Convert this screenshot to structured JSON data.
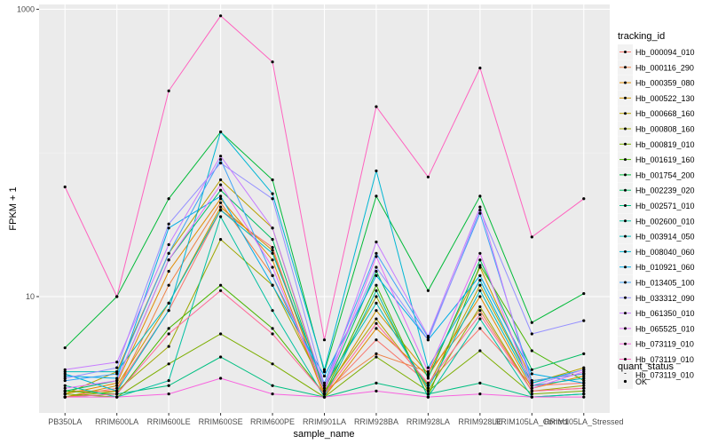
{
  "chart_data": {
    "type": "line",
    "xlabel": "sample_name",
    "ylabel": "FPKM + 1",
    "y_scale": "log10",
    "ylim": [
      1.55,
      1080
    ],
    "y_ticks": [
      {
        "value": 10,
        "label": "10"
      },
      {
        "value": 1000,
        "label": "1000"
      }
    ],
    "grid": true,
    "legend_position": "right",
    "categories": [
      "PB350LA",
      "RRIM600LA",
      "RRIM600LE",
      "RRIM600SE",
      "RRIM600PE",
      "RRIM901LA",
      "RRIM928BA",
      "RRIM928LA",
      "RRIM928LE",
      "RRIM105LA_Control",
      "RRIM105LA_Stressed"
    ],
    "legend": {
      "title": "tracking_id",
      "status_title": "quant_status",
      "status_items": [
        {
          "label": "OK",
          "marker": "point"
        }
      ]
    },
    "series": [
      {
        "name": "Hb_000094_010",
        "color": "#F8766D",
        "values": [
          2.0,
          2.3,
          8.0,
          40.0,
          22.0,
          2.1,
          5.0,
          2.5,
          6.0,
          2.4,
          2.5
        ]
      },
      {
        "name": "Hb_000116_290",
        "color": "#EE8044",
        "values": [
          2.2,
          2.2,
          12.0,
          45.0,
          14.0,
          2.2,
          4.0,
          3.0,
          8.0,
          2.2,
          2.3
        ]
      },
      {
        "name": "Hb_000359_080",
        "color": "#E08B00",
        "values": [
          2.1,
          2.5,
          15.0,
          48.0,
          18.0,
          2.0,
          6.0,
          2.8,
          10.0,
          2.3,
          2.8
        ]
      },
      {
        "name": "Hb_000522_130",
        "color": "#CF9400",
        "values": [
          2.0,
          2.4,
          9.0,
          42.0,
          21.0,
          2.1,
          8.0,
          2.9,
          16.0,
          2.6,
          2.9
        ]
      },
      {
        "name": "Hb_000668_160",
        "color": "#B79F00",
        "values": [
          2.1,
          3.0,
          20.0,
          65.0,
          30.0,
          2.2,
          7.0,
          2.4,
          12.0,
          2.5,
          3.2
        ]
      },
      {
        "name": "Hb_000808_160",
        "color": "#9DA700",
        "values": [
          2.0,
          2.2,
          4.5,
          25.0,
          12.0,
          2.3,
          10.0,
          2.2,
          8.5,
          2.2,
          2.4
        ]
      },
      {
        "name": "Hb_000819_010",
        "color": "#7CAE00",
        "values": [
          2.1,
          2.0,
          3.4,
          5.5,
          3.4,
          2.0,
          3.8,
          2.2,
          4.2,
          2.1,
          2.2
        ]
      },
      {
        "name": "Hb_001619_160",
        "color": "#49B500",
        "values": [
          2.2,
          2.1,
          6.0,
          12.0,
          6.0,
          2.1,
          12.0,
          2.0,
          16.5,
          4.2,
          2.6
        ]
      },
      {
        "name": "Hb_001754_200",
        "color": "#00BA38",
        "values": [
          4.4,
          10.0,
          48.0,
          140.0,
          65.0,
          3.0,
          50.0,
          11.0,
          50.0,
          6.6,
          10.5
        ]
      },
      {
        "name": "Hb_002239_020",
        "color": "#00BD63",
        "values": [
          2.2,
          2.6,
          18.0,
          55.0,
          25.0,
          2.2,
          15.0,
          2.7,
          18.0,
          3.1,
          4.0
        ]
      },
      {
        "name": "Hb_002571_010",
        "color": "#00BF82",
        "values": [
          2.0,
          2.1,
          2.4,
          3.8,
          2.4,
          2.0,
          2.5,
          2.1,
          2.5,
          2.0,
          2.1
        ]
      },
      {
        "name": "Hb_002600_010",
        "color": "#00C0A0",
        "values": [
          2.4,
          2.0,
          2.6,
          36.0,
          8.0,
          2.0,
          11.0,
          2.0,
          7.0,
          2.0,
          2.1
        ]
      },
      {
        "name": "Hb_003914_050",
        "color": "#00BCBA",
        "values": [
          3.0,
          3.0,
          9.0,
          40.0,
          20.0,
          2.4,
          9.0,
          2.3,
          11.0,
          2.4,
          2.7
        ]
      },
      {
        "name": "Hb_008040_060",
        "color": "#00B6D3",
        "values": [
          2.9,
          2.2,
          8.0,
          140.0,
          52.0,
          3.1,
          75.0,
          3.2,
          13.0,
          2.5,
          3.1
        ]
      },
      {
        "name": "Hb_010921_060",
        "color": "#00ACE8",
        "values": [
          2.8,
          2.7,
          30.0,
          50.0,
          12.0,
          2.8,
          14.0,
          5.0,
          14.0,
          2.9,
          2.5
        ]
      },
      {
        "name": "Hb_013405_100",
        "color": "#3DA2F6",
        "values": [
          2.6,
          2.9,
          20.0,
          90.0,
          14.0,
          2.5,
          20.0,
          5.2,
          38.0,
          2.6,
          2.9
        ]
      },
      {
        "name": "Hb_033312_090",
        "color": "#9590FF",
        "values": [
          2.7,
          3.2,
          32.0,
          85.0,
          48.0,
          2.4,
          16.0,
          5.0,
          40.0,
          5.5,
          6.8
        ]
      },
      {
        "name": "Hb_061350_010",
        "color": "#C77CFF",
        "values": [
          3.1,
          3.5,
          23.0,
          95.0,
          30.0,
          2.3,
          24.0,
          5.3,
          42.0,
          2.4,
          3.1
        ]
      },
      {
        "name": "Hb_065525_010",
        "color": "#E26EF7",
        "values": [
          2.3,
          2.6,
          18.0,
          60.0,
          16.0,
          2.2,
          19.0,
          3.0,
          20.0,
          2.3,
          3.0
        ]
      },
      {
        "name": "Hb_073119_010",
        "color": "#F863DF",
        "values": [
          2.0,
          2.0,
          2.1,
          2.7,
          2.1,
          2.0,
          2.2,
          2.0,
          2.1,
          2.0,
          2.0
        ]
      },
      {
        "name": "Hb_073119_010",
        "color": "#FF62BF",
        "values": [
          58.0,
          10.0,
          270.0,
          900.0,
          430.0,
          5.0,
          210.0,
          68.0,
          390.0,
          26.0,
          48.0
        ]
      },
      {
        "name": "Hb_073119_010",
        "color": "#FF6A98",
        "values": [
          2.0,
          2.1,
          5.5,
          11.0,
          5.5,
          2.1,
          6.5,
          2.5,
          7.5,
          2.2,
          2.3
        ]
      }
    ]
  }
}
